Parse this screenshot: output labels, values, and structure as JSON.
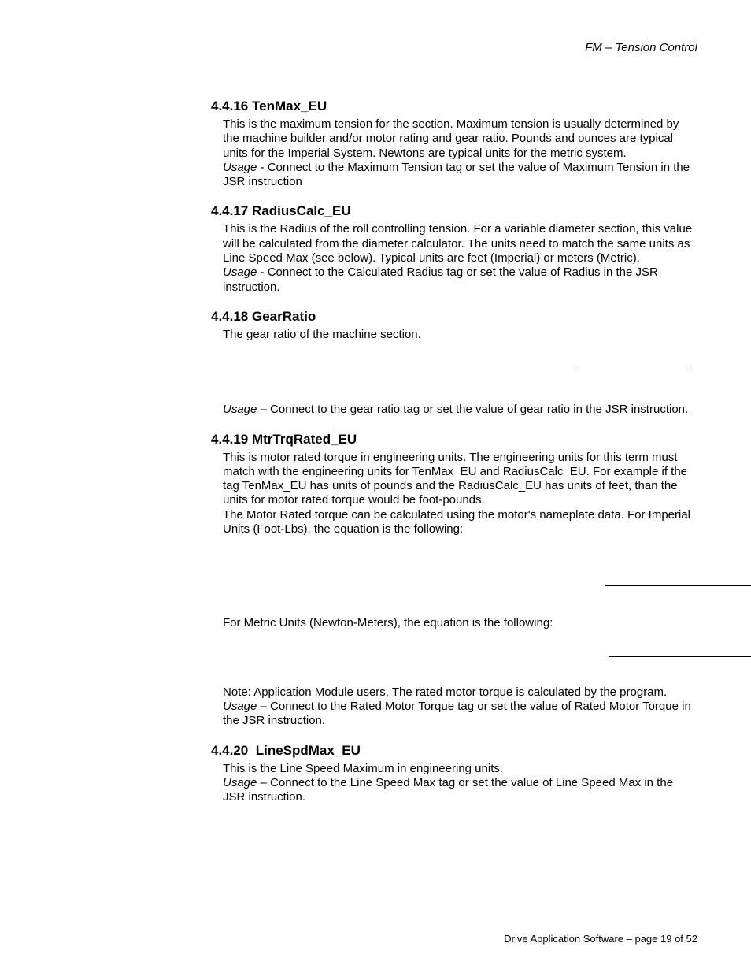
{
  "header": {
    "right": "FM – Tension Control"
  },
  "sections": {
    "s1": {
      "heading": "4.4.16 TenMax_EU",
      "body": "This is the maximum tension for the section.  Maximum tension is usually determined by the machine builder and/or motor rating and gear ratio.  Pounds and ounces are typical units for the Imperial System.  Newtons are typical units for the metric system.",
      "usage_label": "Usage",
      "usage": " - Connect to the Maximum Tension tag or set the value of Maximum Tension in the JSR instruction"
    },
    "s2": {
      "heading": "4.4.17 RadiusCalc_EU",
      "body": "This is the Radius of the roll controlling tension.  For a variable diameter section, this value will be calculated from the diameter calculator.  The units need to match the same units as Line Speed Max (see below).  Typical units are feet (Imperial) or meters (Metric).",
      "usage_label": "Usage",
      "usage": " - Connect to the Calculated Radius tag or set the value of Radius in the JSR instruction."
    },
    "s3": {
      "heading": "4.4.18 GearRatio",
      "body": "The gear ratio of the machine section.",
      "usage_label": "Usage",
      "usage": " – Connect to the gear ratio tag or set the value of gear ratio in the JSR instruction."
    },
    "s4": {
      "heading": "4.4.19 MtrTrqRated_EU",
      "body": "This is motor rated torque in engineering units.  The engineering units for this term must match with the engineering units for TenMax_EU and RadiusCalc_EU.  For example if the tag TenMax_EU has units of pounds and the RadiusCalc_EU has units of feet, than the units for motor rated torque would be foot-pounds.",
      "body2": "The Motor Rated torque can be calculated using the motor's nameplate data.  For Imperial Units (Foot-Lbs), the equation is the following:",
      "mid": "For Metric Units (Newton-Meters), the equation is the following:",
      "note": "Note: Application Module users, The rated motor torque is calculated by the program.",
      "usage_label": "Usage",
      "usage": " – Connect to the Rated Motor Torque tag or set the value of Rated Motor Torque in the JSR instruction."
    },
    "s5": {
      "heading": "4.4.20  LineSpdMax_EU",
      "body": "This is the Line Speed Maximum in engineering units.",
      "usage_label": "Usage",
      "usage": " – Connect to the Line Speed Max tag or set the value of Line Speed Max in the JSR instruction."
    }
  },
  "footer": {
    "text": "Drive Application Software – page 19 of 52"
  }
}
